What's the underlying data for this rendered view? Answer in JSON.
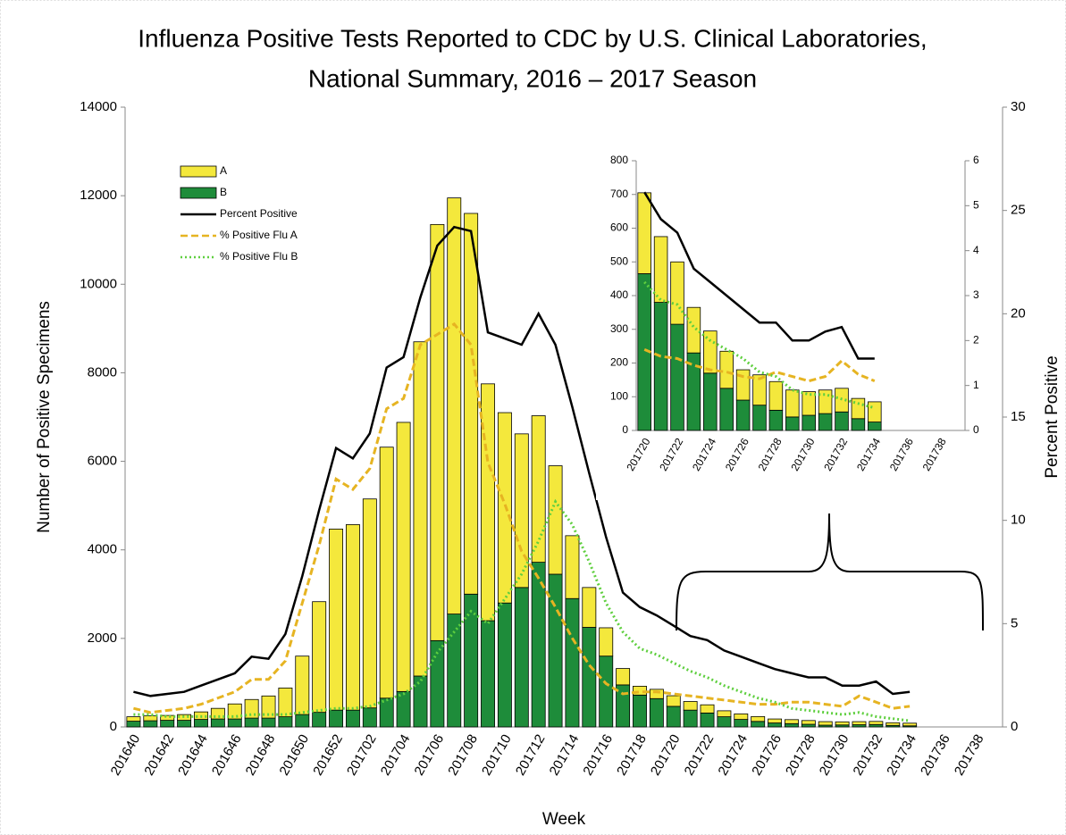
{
  "chart_data": [
    {
      "type": "bar",
      "stacked": true,
      "title": [
        "Influenza Positive Tests Reported to CDC by U.S. Clinical Laboratories,",
        "National Summary, 2016 – 2017 Season"
      ],
      "x_label": "Week",
      "y_label": "Number of Positive Specimens",
      "y2_label": "Percent Positive",
      "legend": "upper left",
      "categories": [
        "201640",
        null,
        "201642",
        null,
        "201644",
        null,
        "201646",
        null,
        "201648",
        null,
        "201650",
        null,
        "201652",
        null,
        "201702",
        null,
        "201704",
        null,
        "201706",
        null,
        "201708",
        null,
        "201710",
        null,
        "201712",
        null,
        "201714",
        null,
        "201716",
        null,
        "201718",
        null,
        "201720",
        null,
        "201722",
        null,
        "201724",
        null,
        "201726",
        null,
        "201728",
        null,
        "201730",
        null,
        "201732",
        null,
        "201734",
        null,
        "201736",
        null,
        "201738",
        null
      ],
      "ylim": [
        0,
        14000
      ],
      "yticks": [
        0,
        2000,
        4000,
        6000,
        8000,
        10000,
        12000,
        14000
      ],
      "y2lim": [
        0,
        30
      ],
      "y2ticks": [
        0,
        5,
        10,
        15,
        20,
        25,
        30
      ],
      "series": [
        {
          "name": "A",
          "type": "bar",
          "color": "#f4e83c",
          "values": [
            100,
            110,
            110,
            130,
            170,
            240,
            340,
            420,
            500,
            650,
            1320,
            2500,
            4090,
            4190,
            4720,
            5670,
            6080,
            7550,
            9400,
            9400,
            8600,
            5350,
            4300,
            3470,
            3310,
            2450,
            1420,
            900,
            640,
            370,
            200,
            210,
            240,
            195,
            185,
            135,
            125,
            110,
            90,
            90,
            85,
            80,
            70,
            70,
            70,
            60,
            60,
            null,
            null,
            null,
            null,
            null
          ]
        },
        {
          "name": "B",
          "type": "bar",
          "color": "#1e8c3a",
          "values": [
            130,
            140,
            150,
            150,
            170,
            180,
            180,
            200,
            200,
            230,
            280,
            330,
            380,
            380,
            430,
            650,
            800,
            1150,
            1950,
            2550,
            3000,
            2400,
            2800,
            3150,
            3720,
            3450,
            2900,
            2250,
            1600,
            950,
            720,
            640,
            465,
            380,
            315,
            230,
            170,
            125,
            90,
            75,
            60,
            40,
            45,
            50,
            55,
            35,
            25,
            null,
            null,
            null,
            null,
            null
          ]
        },
        {
          "name": "Percent Positive",
          "type": "line",
          "axis": "y2",
          "color": "#000000",
          "dash": "solid",
          "values": [
            1.7,
            1.5,
            1.6,
            1.7,
            2.0,
            2.3,
            2.6,
            3.4,
            3.3,
            4.5,
            7.3,
            10.5,
            13.5,
            13.0,
            14.2,
            17.4,
            17.9,
            20.8,
            23.3,
            24.2,
            24.0,
            19.1,
            18.8,
            18.5,
            20.0,
            18.5,
            15.5,
            12.3,
            9.2,
            6.5,
            5.8,
            5.4,
            4.9,
            4.4,
            4.2,
            3.7,
            3.4,
            3.1,
            2.8,
            2.6,
            2.4,
            2.4,
            2.0,
            2.0,
            2.2,
            1.6,
            1.7,
            null,
            null,
            null,
            null,
            null
          ]
        },
        {
          "name": "% Positive Flu A",
          "type": "line",
          "axis": "y2",
          "color": "#e6b422",
          "dash": "dashed",
          "values": [
            0.9,
            0.7,
            0.8,
            0.9,
            1.1,
            1.4,
            1.7,
            2.3,
            2.3,
            3.2,
            6.0,
            8.8,
            12.0,
            11.5,
            12.5,
            15.4,
            15.9,
            18.5,
            19.0,
            19.5,
            18.5,
            12.8,
            10.8,
            8.5,
            7.2,
            5.8,
            4.3,
            3.0,
            2.1,
            1.6,
            1.7,
            1.7,
            1.6,
            1.5,
            1.4,
            1.3,
            1.2,
            1.1,
            1.1,
            1.2,
            1.2,
            1.1,
            1.0,
            1.5,
            1.2,
            0.9,
            1.0,
            null,
            null,
            null,
            null,
            null
          ]
        },
        {
          "name": "% Positive Flu B",
          "type": "line",
          "axis": "y2",
          "color": "#5fcf3f",
          "dash": "dotted",
          "values": [
            0.6,
            0.6,
            0.5,
            0.5,
            0.5,
            0.5,
            0.5,
            0.6,
            0.6,
            0.6,
            0.7,
            0.8,
            0.9,
            0.9,
            1.0,
            1.3,
            1.6,
            2.2,
            3.6,
            4.6,
            5.6,
            5.0,
            6.2,
            7.4,
            9.0,
            10.9,
            9.8,
            8.0,
            6.0,
            4.6,
            3.8,
            3.5,
            3.1,
            2.7,
            2.4,
            2.0,
            1.7,
            1.4,
            1.2,
            0.9,
            0.8,
            0.7,
            0.6,
            0.7,
            0.5,
            0.4,
            0.3,
            null,
            null,
            null,
            null,
            null
          ]
        }
      ]
    },
    {
      "type": "bar",
      "stacked": true,
      "categories": [
        "201720",
        null,
        "201722",
        null,
        "201724",
        null,
        "201726",
        null,
        "201728",
        null,
        "201730",
        null,
        "201732",
        null,
        "201734",
        null,
        "201736",
        null,
        "201738",
        null
      ],
      "ylim": [
        0,
        800
      ],
      "yticks": [
        0,
        100,
        200,
        300,
        400,
        500,
        600,
        700,
        800
      ],
      "y2lim": [
        0,
        6
      ],
      "y2ticks": [
        0,
        1,
        2,
        3,
        4,
        5,
        6
      ],
      "series": [
        {
          "type": "bar",
          "color": "#f4e83c",
          "values": [
            240,
            195,
            185,
            135,
            125,
            110,
            90,
            90,
            85,
            80,
            70,
            70,
            70,
            60,
            60,
            null,
            null,
            null,
            null,
            null
          ]
        },
        {
          "type": "bar",
          "color": "#1e8c3a",
          "values": [
            465,
            380,
            315,
            230,
            170,
            125,
            90,
            75,
            60,
            40,
            45,
            50,
            55,
            35,
            25,
            null,
            null,
            null,
            null,
            null
          ]
        },
        {
          "type": "line",
          "axis": "y2",
          "color": "#000000",
          "dash": "solid",
          "values": [
            5.3,
            4.7,
            4.4,
            3.6,
            3.3,
            3.0,
            2.7,
            2.4,
            2.4,
            2.0,
            2.0,
            2.2,
            2.3,
            1.6,
            1.6,
            null,
            null,
            null,
            null,
            null
          ]
        },
        {
          "type": "line",
          "axis": "y2",
          "color": "#e6b422",
          "dash": "dashed",
          "values": [
            1.8,
            1.65,
            1.6,
            1.45,
            1.35,
            1.3,
            1.2,
            1.15,
            1.3,
            1.2,
            1.1,
            1.2,
            1.55,
            1.25,
            1.1,
            null,
            null,
            null,
            null,
            null
          ]
        },
        {
          "type": "line",
          "axis": "y2",
          "color": "#5fcf3f",
          "dash": "dotted",
          "values": [
            3.3,
            2.9,
            2.8,
            2.3,
            2.0,
            1.8,
            1.6,
            1.3,
            1.2,
            0.9,
            0.8,
            0.8,
            0.7,
            0.6,
            0.5,
            null,
            null,
            null,
            null,
            null
          ]
        }
      ]
    }
  ]
}
